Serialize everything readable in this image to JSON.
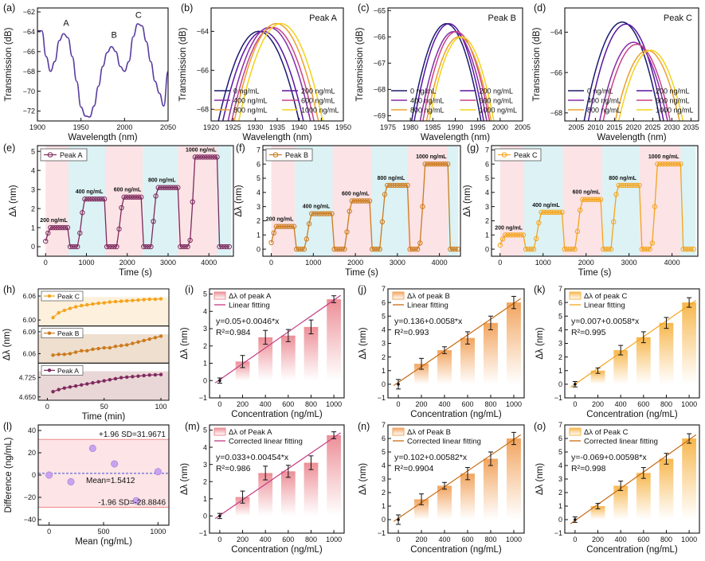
{
  "colors": {
    "c1": "#1a1a70",
    "c2": "#5a14a0",
    "c3": "#862ca6",
    "c4": "#c8428a",
    "c5": "#eba02e",
    "c6": "#f3d21a",
    "specA": "#5a3c9e",
    "purpleMark": "#7e2a5e",
    "orangeMark": "#cc7a1c",
    "yellowMark": "#f4a41c",
    "redBar": "#ec8e96",
    "orangeBar": "#f2a45e",
    "yellowBar": "#f7b74e",
    "pinkLine": "#c43a83",
    "orangeLine": "#c76c14",
    "bgPink": "#fbe3e6",
    "bgCyan": "#dcf2f4",
    "baBand": "#fde4e6",
    "baLine": "#f08a8a",
    "baMean": "#3b4fd8",
    "baPoint": "#c9a2f0"
  },
  "legend_spectra": [
    "0 ng/mL",
    "200 ng/mL",
    "400 ng/mL",
    "600 ng/mL",
    "800 ng/mL",
    "1000 ng/mL"
  ],
  "chart_data": [
    {
      "id": "a",
      "panel": "(a)",
      "type": "line",
      "xlabel": "Wavelength (nm)",
      "ylabel": "Transmission (dB)",
      "xlim": [
        1900,
        2050
      ],
      "ylim": [
        -73,
        -61.6
      ],
      "xticks": [
        1900,
        1950,
        2000,
        2050
      ],
      "yticks": [
        -62,
        -64,
        -66,
        -68,
        -70,
        -72
      ],
      "annotations": [
        {
          "text": "A",
          "x": 1933,
          "y": -63.4
        },
        {
          "text": "B",
          "x": 1988,
          "y": -64.6
        },
        {
          "text": "C",
          "x": 2016,
          "y": -62.6
        }
      ],
      "x": [
        1900,
        1905,
        1910,
        1915,
        1920,
        1925,
        1930,
        1935,
        1940,
        1945,
        1950,
        1955,
        1960,
        1965,
        1970,
        1975,
        1980,
        1985,
        1990,
        1995,
        2000,
        2005,
        2010,
        2015,
        2020,
        2025,
        2030,
        2035,
        2040,
        2045,
        2050
      ],
      "values": [
        -63.9,
        -63.9,
        -66.5,
        -68.0,
        -67.0,
        -64.9,
        -64.2,
        -64.6,
        -66.5,
        -69.0,
        -71.6,
        -72.5,
        -72.6,
        -71.5,
        -69.5,
        -67.5,
        -66.1,
        -65.5,
        -66.0,
        -67.5,
        -68.0,
        -67.0,
        -64.5,
        -63.2,
        -63.4,
        -65.0,
        -67.0,
        -69.0,
        -70.2,
        -71.5,
        -68.0
      ]
    },
    {
      "id": "b",
      "panel": "(b)",
      "type": "line",
      "title": "Peak A",
      "xlabel": "Wavelength (nm)",
      "ylabel": "Transmission (dB)",
      "xlim": [
        1920,
        1950
      ],
      "ylim": [
        -68.6,
        -62.8
      ],
      "xticks": [
        1920,
        1925,
        1930,
        1935,
        1940,
        1945,
        1950
      ],
      "yticks": [
        -64,
        -66,
        -68
      ],
      "series": [
        {
          "name": "0 ng/mL",
          "center": 1930.8,
          "peak": -64.0,
          "width": 9
        },
        {
          "name": "200 ng/mL",
          "center": 1931.8,
          "peak": -64.0,
          "width": 9
        },
        {
          "name": "400 ng/mL",
          "center": 1933.2,
          "peak": -63.8,
          "width": 9
        },
        {
          "name": "600 ng/mL",
          "center": 1934.0,
          "peak": -63.8,
          "width": 9
        },
        {
          "name": "800 ng/mL",
          "center": 1934.8,
          "peak": -63.6,
          "width": 9
        },
        {
          "name": "1000 ng/mL",
          "center": 1935.8,
          "peak": -63.6,
          "width": 9
        }
      ]
    },
    {
      "id": "c",
      "panel": "(c)",
      "type": "line",
      "title": "Peak B",
      "xlabel": "Wavelength (nm)",
      "ylabel": "Transmission (dB)",
      "xlim": [
        1975,
        2005
      ],
      "ylim": [
        -69.2,
        -64.9
      ],
      "xticks": [
        1975,
        1980,
        1985,
        1990,
        1995,
        2000,
        2005
      ],
      "yticks": [
        -65,
        -66,
        -67,
        -68,
        -69
      ],
      "series": [
        {
          "name": "0 ng/mL",
          "center": 1988.0,
          "peak": -65.5,
          "width": 8
        },
        {
          "name": "200 ng/mL",
          "center": 1988.6,
          "peak": -65.5,
          "width": 8
        },
        {
          "name": "400 ng/mL",
          "center": 1989.6,
          "peak": -65.8,
          "width": 8
        },
        {
          "name": "600 ng/mL",
          "center": 1990.2,
          "peak": -65.8,
          "width": 8
        },
        {
          "name": "800 ng/mL",
          "center": 1990.8,
          "peak": -66.0,
          "width": 8
        },
        {
          "name": "1000 ng/mL",
          "center": 1991.4,
          "peak": -66.0,
          "width": 8
        }
      ]
    },
    {
      "id": "d",
      "panel": "(d)",
      "type": "line",
      "title": "Peak C",
      "xlabel": "Wavelength (nm)",
      "ylabel": "Transmission (dB)",
      "xlim": [
        2002,
        2037
      ],
      "ylim": [
        -68.4,
        -62.8
      ],
      "xticks": [
        2005,
        2010,
        2015,
        2020,
        2025,
        2030,
        2035
      ],
      "yticks": [
        -64,
        -66,
        -68
      ],
      "series": [
        {
          "name": "0 ng/mL",
          "center": 2017.0,
          "peak": -63.5,
          "width": 10
        },
        {
          "name": "200 ng/mL",
          "center": 2018.0,
          "peak": -63.6,
          "width": 10
        },
        {
          "name": "400 ng/mL",
          "center": 2020.0,
          "peak": -64.5,
          "width": 10
        },
        {
          "name": "600 ng/mL",
          "center": 2020.8,
          "peak": -64.6,
          "width": 10
        },
        {
          "name": "800 ng/mL",
          "center": 2023.6,
          "peak": -64.9,
          "width": 10
        },
        {
          "name": "1000 ng/mL",
          "center": 2024.5,
          "peak": -64.9,
          "width": 10
        }
      ]
    },
    {
      "id": "e",
      "panel": "(e)",
      "type": "scatter",
      "legend": "Peak A",
      "xlabel": "Time (s)",
      "ylabel": "Δλ (nm)",
      "xlim": [
        -200,
        4600
      ],
      "ylim": [
        -0.5,
        5.3
      ],
      "xticks": [
        0,
        1000,
        2000,
        3000,
        4000
      ],
      "yticks": [
        0,
        1,
        2,
        3,
        4,
        5
      ],
      "segments": [
        [
          0,
          560
        ],
        [
          560,
          1460
        ],
        [
          1460,
          2380
        ],
        [
          2380,
          3240
        ],
        [
          3240,
          4200
        ],
        [
          4200,
          4550
        ]
      ],
      "levels": [
        {
          "label": "200 ng/mL",
          "value": 1.0,
          "start": 80,
          "end": 560
        },
        {
          "label": "400 ng/mL",
          "value": 2.5,
          "start": 920,
          "end": 1460
        },
        {
          "label": "600 ng/mL",
          "value": 2.6,
          "start": 1870,
          "end": 2380
        },
        {
          "label": "800 ng/mL",
          "value": 3.1,
          "start": 2700,
          "end": 3240
        },
        {
          "label": "1000 ng/mL",
          "value": 4.7,
          "start": 3650,
          "end": 4200
        }
      ]
    },
    {
      "id": "f",
      "panel": "(f)",
      "type": "scatter",
      "legend": "Peak B",
      "xlabel": "Time (s)",
      "ylabel": "Δλ (nm)",
      "xlim": [
        -200,
        4500
      ],
      "ylim": [
        -0.5,
        7.3
      ],
      "xticks": [
        0,
        1000,
        2000,
        3000,
        4000
      ],
      "yticks": [
        0,
        1,
        2,
        3,
        4,
        5,
        6,
        7
      ],
      "segments": [
        [
          0,
          560
        ],
        [
          560,
          1460
        ],
        [
          1460,
          2380
        ],
        [
          2380,
          3240
        ],
        [
          3240,
          4200
        ],
        [
          4200,
          4450
        ]
      ],
      "levels": [
        {
          "label": "200 ng/mL",
          "value": 1.6,
          "start": 80,
          "end": 560
        },
        {
          "label": "400 ng/mL",
          "value": 2.5,
          "start": 920,
          "end": 1460
        },
        {
          "label": "600 ng/mL",
          "value": 3.4,
          "start": 1870,
          "end": 2380
        },
        {
          "label": "800 ng/mL",
          "value": 4.5,
          "start": 2700,
          "end": 3240
        },
        {
          "label": "1000 ng/mL",
          "value": 6.0,
          "start": 3650,
          "end": 4200
        }
      ]
    },
    {
      "id": "g",
      "panel": "(g)",
      "type": "scatter",
      "legend": "Peak C",
      "xlabel": "Time (s)",
      "ylabel": "Δλ (nm)",
      "xlim": [
        -200,
        4600
      ],
      "ylim": [
        -0.5,
        7.3
      ],
      "xticks": [
        0,
        1000,
        2000,
        3000,
        4000
      ],
      "yticks": [
        0,
        1,
        2,
        3,
        4,
        5,
        6,
        7
      ],
      "segments": [
        [
          0,
          560
        ],
        [
          560,
          1460
        ],
        [
          1460,
          2380
        ],
        [
          2380,
          3240
        ],
        [
          3240,
          4200
        ],
        [
          4200,
          4550
        ]
      ],
      "levels": [
        {
          "label": "200 ng/mL",
          "value": 1.0,
          "start": 80,
          "end": 560
        },
        {
          "label": "400 ng/mL",
          "value": 2.6,
          "start": 920,
          "end": 1460
        },
        {
          "label": "600 ng/mL",
          "value": 3.5,
          "start": 1870,
          "end": 2380
        },
        {
          "label": "800 ng/mL",
          "value": 4.5,
          "start": 2700,
          "end": 3240
        },
        {
          "label": "1000 ng/mL",
          "value": 6.0,
          "start": 3650,
          "end": 4200
        }
      ]
    },
    {
      "id": "h",
      "panel": "(h)",
      "type": "line",
      "xlabel": "Time (min)",
      "ylabel": "Δλ (nm)",
      "xlim": [
        -8,
        107
      ],
      "xticks": [
        0,
        50,
        100
      ],
      "x": [
        5,
        10,
        15,
        20,
        25,
        30,
        35,
        40,
        45,
        50,
        55,
        60,
        65,
        70,
        75,
        80,
        85,
        90,
        95,
        100
      ],
      "subplots": [
        {
          "name": "Peak C",
          "ylim": [
            5.985,
            6.078
          ],
          "yticks": [
            6.06,
            6.0
          ],
          "values": [
            6.006,
            6.018,
            6.024,
            6.029,
            6.033,
            6.036,
            6.038,
            6.04,
            6.042,
            6.043,
            6.045,
            6.046,
            6.047,
            6.048,
            6.049,
            6.05,
            6.051,
            6.052,
            6.052,
            6.053
          ]
        },
        {
          "name": "Peak B",
          "ylim": [
            6.047,
            6.098
          ],
          "yticks": [
            6.09,
            6.06
          ],
          "values": [
            6.058,
            6.059,
            6.059,
            6.06,
            6.062,
            6.064,
            6.064,
            6.066,
            6.067,
            6.068,
            6.068,
            6.07,
            6.071,
            6.072,
            6.074,
            6.076,
            6.078,
            6.08,
            6.082,
            6.084
          ]
        },
        {
          "name": "Peak A",
          "ylim": [
            4.637,
            4.78
          ],
          "yticks": [
            4.725,
            4.65
          ],
          "values": [
            4.67,
            4.678,
            4.684,
            4.688,
            4.692,
            4.696,
            4.7,
            4.704,
            4.708,
            4.712,
            4.716,
            4.72,
            4.724,
            4.726,
            4.728,
            4.73,
            4.732,
            4.734,
            4.735,
            4.736
          ]
        }
      ]
    },
    {
      "id": "i",
      "panel": "(i)",
      "type": "bar",
      "xlabel": "Concentration (ng/mL)",
      "ylabel": "Δλ (nm)",
      "legend": [
        "Δλ of peak A",
        "Linear fitting"
      ],
      "equation": "y=0.05+0.0046*x",
      "r2": "R²=0.984",
      "xlim": [
        -90,
        1090
      ],
      "ylim": [
        -1,
        5.3
      ],
      "xticks": [
        0,
        200,
        400,
        600,
        800,
        1000
      ],
      "yticks": [
        -1,
        0,
        1,
        2,
        3,
        4,
        5
      ],
      "categories": [
        0,
        200,
        400,
        600,
        800,
        1000
      ],
      "values": [
        0,
        1.1,
        2.5,
        2.6,
        3.1,
        4.7
      ],
      "errors": [
        0.15,
        0.35,
        0.4,
        0.35,
        0.4,
        0.2
      ],
      "fit": [
        0.05,
        0.0046
      ]
    },
    {
      "id": "j",
      "panel": "(j)",
      "type": "bar",
      "xlabel": "Concentration (ng/mL)",
      "ylabel": "Δλ (nm)",
      "legend": [
        "Δλ of peak B",
        "Linear fitting"
      ],
      "equation": "y=0.136+0.0058*x",
      "r2": "R²=0.993",
      "xlim": [
        -90,
        1090
      ],
      "ylim": [
        -1,
        7
      ],
      "xticks": [
        0,
        200,
        400,
        600,
        800,
        1000
      ],
      "yticks": [
        -1,
        0,
        1,
        2,
        3,
        4,
        5,
        6,
        7
      ],
      "categories": [
        0,
        200,
        400,
        600,
        800,
        1000
      ],
      "values": [
        0,
        1.5,
        2.5,
        3.4,
        4.5,
        6.0
      ],
      "errors": [
        0.35,
        0.4,
        0.25,
        0.45,
        0.5,
        0.45
      ],
      "fit": [
        0.136,
        0.0058
      ]
    },
    {
      "id": "k",
      "panel": "(k)",
      "type": "bar",
      "xlabel": "Concentration (ng/mL)",
      "ylabel": "Δλ (nm)",
      "legend": [
        "Δλ of peak C",
        "Linear fitting"
      ],
      "equation": "y=0.007+0.0058*x",
      "r2": "R²=0.995",
      "xlim": [
        -90,
        1090
      ],
      "ylim": [
        -1,
        7
      ],
      "xticks": [
        0,
        200,
        400,
        600,
        800,
        1000
      ],
      "yticks": [
        -1,
        0,
        1,
        2,
        3,
        4,
        5,
        6,
        7
      ],
      "categories": [
        0,
        200,
        400,
        600,
        800,
        1000
      ],
      "values": [
        0,
        1.0,
        2.5,
        3.45,
        4.5,
        6.0
      ],
      "errors": [
        0.2,
        0.2,
        0.35,
        0.4,
        0.4,
        0.35
      ],
      "fit": [
        0.007,
        0.0058
      ]
    },
    {
      "id": "l",
      "panel": "(l)",
      "type": "scatter",
      "xlabel": "Mean (ng/mL)",
      "ylabel": "Difference (ng/mL)",
      "xlim": [
        -100,
        1100
      ],
      "ylim": [
        -45,
        45
      ],
      "xticks": [
        0,
        500,
        1000
      ],
      "yticks": [
        -40,
        -20,
        0,
        20,
        40
      ],
      "upper": 31.9671,
      "lower": -28.8846,
      "mean": 1.5412,
      "upper_label": "+1.96 SD=31.9671",
      "lower_label": "-1.96 SD=-28.8846",
      "mean_label": "Mean=1.5412",
      "points": [
        {
          "x": 0,
          "y": 0
        },
        {
          "x": 200,
          "y": -6
        },
        {
          "x": 400,
          "y": 24
        },
        {
          "x": 600,
          "y": 10
        },
        {
          "x": 800,
          "y": -23
        },
        {
          "x": 1000,
          "y": 3
        }
      ]
    },
    {
      "id": "m",
      "panel": "(m)",
      "type": "bar",
      "xlabel": "Concentration (ng/mL)",
      "ylabel": "Δλ (nm)",
      "legend": [
        "Δλ of Peak A",
        "Corrected linear fitting"
      ],
      "equation": "y=0.033+0.00454*x",
      "r2": "R²=0.986",
      "xlim": [
        -90,
        1090
      ],
      "ylim": [
        -1,
        5.3
      ],
      "xticks": [
        0,
        200,
        400,
        600,
        800,
        1000
      ],
      "yticks": [
        -1,
        0,
        1,
        2,
        3,
        4,
        5
      ],
      "categories": [
        0,
        200,
        400,
        600,
        800,
        1000
      ],
      "values": [
        0,
        1.1,
        2.5,
        2.6,
        3.1,
        4.7
      ],
      "errors": [
        0.15,
        0.35,
        0.4,
        0.35,
        0.4,
        0.2
      ],
      "fit": [
        0.033,
        0.00454
      ]
    },
    {
      "id": "n",
      "panel": "(n)",
      "type": "bar",
      "xlabel": "Concentration (ng/mL)",
      "ylabel": "Δλ (nm)",
      "legend": [
        "Δλ of Peak B",
        "Corrected linear fitting"
      ],
      "equation": "y=0.102+0.00582*x",
      "r2": "R²=0.9904",
      "xlim": [
        -90,
        1090
      ],
      "ylim": [
        -1,
        7
      ],
      "xticks": [
        0,
        200,
        400,
        600,
        800,
        1000
      ],
      "yticks": [
        -1,
        0,
        1,
        2,
        3,
        4,
        5,
        6,
        7
      ],
      "categories": [
        0,
        200,
        400,
        600,
        800,
        1000
      ],
      "values": [
        0,
        1.5,
        2.5,
        3.4,
        4.5,
        6.0
      ],
      "errors": [
        0.35,
        0.4,
        0.25,
        0.45,
        0.5,
        0.45
      ],
      "fit": [
        0.102,
        0.00582
      ]
    },
    {
      "id": "o",
      "panel": "(o)",
      "type": "bar",
      "xlabel": "Concentration (ng/mL)",
      "ylabel": "Δλ (nm)",
      "legend": [
        "Δλ of Peak C",
        "Corrected linear fitting"
      ],
      "equation": "y=-0.069+0.00598*x",
      "r2": "R²=0.998",
      "xlim": [
        -90,
        1090
      ],
      "ylim": [
        -1,
        7
      ],
      "xticks": [
        0,
        200,
        400,
        600,
        800,
        1000
      ],
      "yticks": [
        -1,
        0,
        1,
        2,
        3,
        4,
        5,
        6,
        7
      ],
      "categories": [
        0,
        200,
        400,
        600,
        800,
        1000
      ],
      "values": [
        0,
        1.0,
        2.5,
        3.45,
        4.5,
        6.0
      ],
      "errors": [
        0.2,
        0.2,
        0.35,
        0.4,
        0.4,
        0.35
      ],
      "fit": [
        -0.069,
        0.00598
      ]
    }
  ]
}
